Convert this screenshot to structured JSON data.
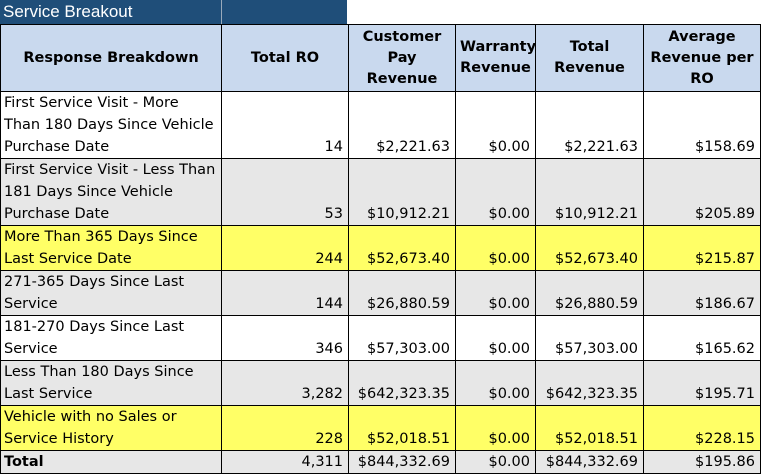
{
  "title": "Service Breakout",
  "columns": [
    "Response Breakdown",
    "Total RO",
    "Customer Pay Revenue",
    "Warranty Revenue",
    "Total Revenue",
    "Average Revenue per RO"
  ],
  "rows": [
    {
      "style": "white",
      "cells": [
        "First Service Visit - More Than 180 Days Since Vehicle Purchase Date",
        "14",
        "$2,221.63",
        "$0.00",
        "$2,221.63",
        "$158.69"
      ]
    },
    {
      "style": "gray",
      "cells": [
        "First Service Visit - Less Than 181 Days Since Vehicle Purchase Date",
        "53",
        "$10,912.21",
        "$0.00",
        "$10,912.21",
        "$205.89"
      ]
    },
    {
      "style": "yellow",
      "cells": [
        "More Than 365 Days Since Last Service Date",
        "244",
        "$52,673.40",
        "$0.00",
        "$52,673.40",
        "$215.87"
      ]
    },
    {
      "style": "gray",
      "cells": [
        "271-365 Days Since Last Service",
        "144",
        "$26,880.59",
        "$0.00",
        "$26,880.59",
        "$186.67"
      ]
    },
    {
      "style": "white",
      "cells": [
        "181-270 Days Since Last Service",
        "346",
        "$57,303.00",
        "$0.00",
        "$57,303.00",
        "$165.62"
      ]
    },
    {
      "style": "gray",
      "cells": [
        "Less Than 180 Days Since Last Service",
        "3,282",
        "$642,323.35",
        "$0.00",
        "$642,323.35",
        "$195.71"
      ]
    },
    {
      "style": "yellow",
      "cells": [
        "Vehicle with no Sales or Service History",
        "228",
        "$52,018.51",
        "$0.00",
        "$52,018.51",
        "$228.15"
      ]
    },
    {
      "style": "total",
      "cells": [
        "Total",
        "4,311",
        "$844,332.69",
        "$0.00",
        "$844,332.69",
        "$195.86"
      ]
    }
  ],
  "colors": {
    "title_bg": "#1f4e79",
    "header_bg": "#c9d9ee",
    "row_gray": "#e7e7e7",
    "row_highlight": "#ffff66"
  }
}
